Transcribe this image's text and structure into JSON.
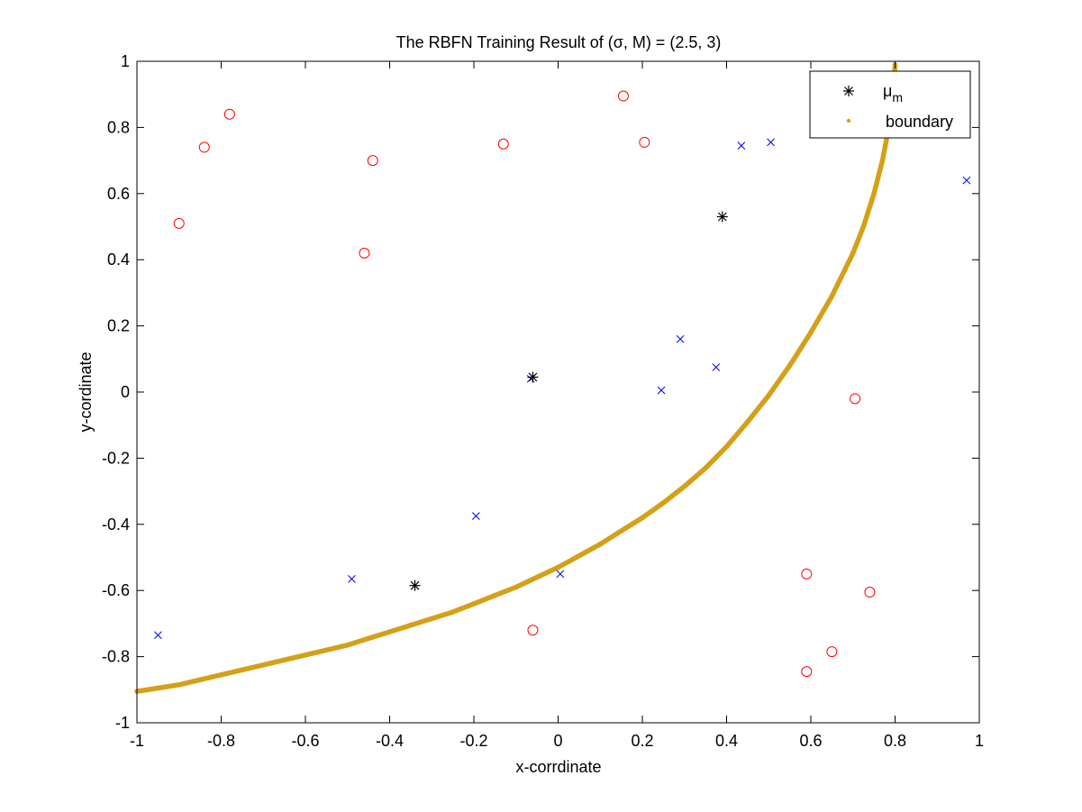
{
  "chart_data": {
    "type": "scatter",
    "title": "The RBFN Training Result of (σ, M) = (2.5, 3)",
    "xlabel": "x-corrdinate",
    "ylabel": "y-cordinate",
    "xlim": [
      -1,
      1
    ],
    "ylim": [
      -1,
      1
    ],
    "xticks": [
      "-1",
      "-0.8",
      "-0.6",
      "-0.4",
      "-0.2",
      "0",
      "0.2",
      "0.4",
      "0.6",
      "0.8",
      "1"
    ],
    "yticks": [
      "-1",
      "-0.8",
      "-0.6",
      "-0.4",
      "-0.2",
      "0",
      "0.2",
      "0.4",
      "0.6",
      "0.8",
      "1"
    ],
    "grid": false,
    "legend_position": "top-right",
    "legend": [
      {
        "label_main": "μ",
        "label_sub": "m",
        "marker": "asterisk",
        "color": "#000000"
      },
      {
        "label_main": "boundary",
        "label_sub": "",
        "marker": "dot",
        "color": "#D4A017"
      }
    ],
    "colors": {
      "class_o": "#FF0000",
      "class_x": "#0000FF",
      "centers": "#000000",
      "boundary": "#D4A017"
    },
    "series": [
      {
        "marker": "circle",
        "color": "#FF0000",
        "points": [
          [
            -0.9,
            0.51
          ],
          [
            -0.84,
            0.74
          ],
          [
            -0.78,
            0.84
          ],
          [
            -0.44,
            0.7
          ],
          [
            -0.46,
            0.42
          ],
          [
            -0.13,
            0.75
          ],
          [
            0.155,
            0.895
          ],
          [
            0.205,
            0.755
          ],
          [
            0.705,
            -0.02
          ],
          [
            0.59,
            -0.55
          ],
          [
            0.74,
            -0.605
          ],
          [
            0.65,
            -0.785
          ],
          [
            0.59,
            -0.845
          ],
          [
            -0.06,
            -0.72
          ]
        ]
      },
      {
        "marker": "x",
        "color": "#0000FF",
        "points": [
          [
            -0.95,
            -0.735
          ],
          [
            -0.49,
            -0.565
          ],
          [
            -0.195,
            -0.375
          ],
          [
            0.005,
            -0.55
          ],
          [
            -0.065,
            0.04
          ],
          [
            0.245,
            0.005
          ],
          [
            0.29,
            0.16
          ],
          [
            0.375,
            0.075
          ],
          [
            0.435,
            0.745
          ],
          [
            0.505,
            0.755
          ],
          [
            0.97,
            0.64
          ]
        ]
      },
      {
        "name": "μm",
        "marker": "asterisk",
        "color": "#000000",
        "points": [
          [
            -0.06,
            0.045
          ],
          [
            -0.34,
            -0.585
          ],
          [
            0.39,
            0.53
          ]
        ]
      }
    ],
    "boundary": {
      "name": "boundary",
      "color": "#D4A017",
      "points": [
        [
          -1.0,
          -0.905
        ],
        [
          -0.95,
          -0.895
        ],
        [
          -0.9,
          -0.885
        ],
        [
          -0.85,
          -0.87
        ],
        [
          -0.8,
          -0.855
        ],
        [
          -0.75,
          -0.84
        ],
        [
          -0.7,
          -0.825
        ],
        [
          -0.65,
          -0.81
        ],
        [
          -0.6,
          -0.795
        ],
        [
          -0.55,
          -0.78
        ],
        [
          -0.5,
          -0.765
        ],
        [
          -0.45,
          -0.745
        ],
        [
          -0.4,
          -0.725
        ],
        [
          -0.35,
          -0.705
        ],
        [
          -0.3,
          -0.685
        ],
        [
          -0.25,
          -0.665
        ],
        [
          -0.2,
          -0.64
        ],
        [
          -0.15,
          -0.615
        ],
        [
          -0.1,
          -0.59
        ],
        [
          -0.05,
          -0.56
        ],
        [
          0.0,
          -0.53
        ],
        [
          0.05,
          -0.495
        ],
        [
          0.1,
          -0.46
        ],
        [
          0.15,
          -0.42
        ],
        [
          0.2,
          -0.38
        ],
        [
          0.25,
          -0.335
        ],
        [
          0.3,
          -0.285
        ],
        [
          0.35,
          -0.23
        ],
        [
          0.4,
          -0.165
        ],
        [
          0.45,
          -0.09
        ],
        [
          0.5,
          -0.01
        ],
        [
          0.55,
          0.08
        ],
        [
          0.6,
          0.18
        ],
        [
          0.65,
          0.29
        ],
        [
          0.7,
          0.42
        ],
        [
          0.725,
          0.5
        ],
        [
          0.75,
          0.6
        ],
        [
          0.77,
          0.7
        ],
        [
          0.785,
          0.8
        ],
        [
          0.795,
          0.9
        ],
        [
          0.8,
          0.99
        ]
      ]
    }
  }
}
